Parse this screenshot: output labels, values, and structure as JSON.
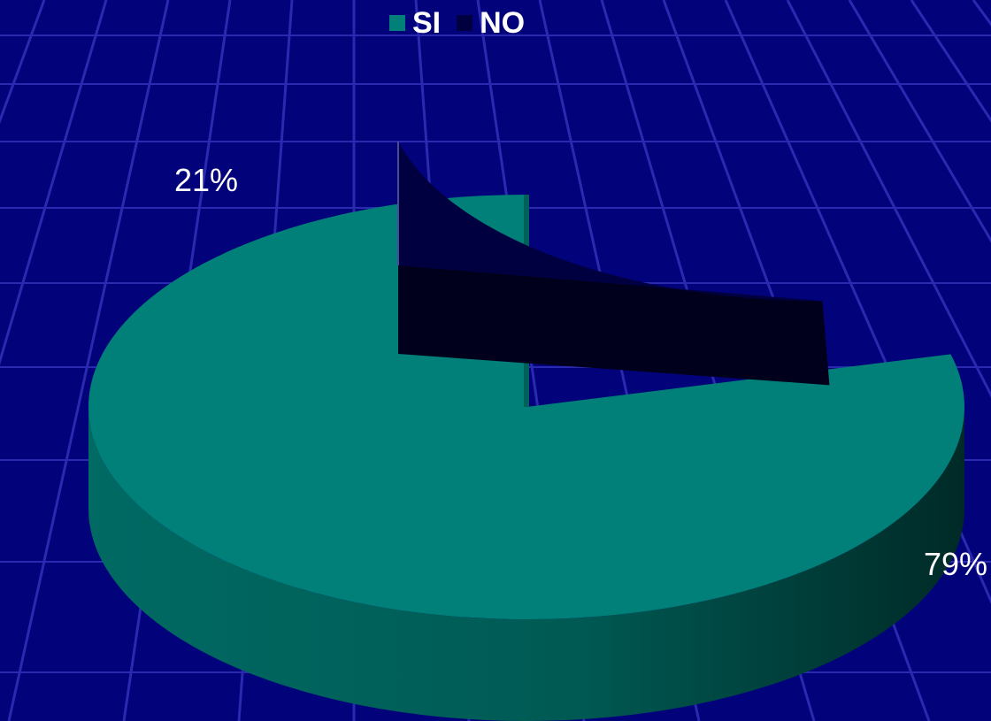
{
  "chart_data": {
    "type": "pie",
    "title": "",
    "categories": [
      "SI",
      "NO"
    ],
    "values": [
      79,
      21
    ],
    "labels": [
      "79%",
      "21%"
    ],
    "colors": [
      "#008078",
      "#000040"
    ],
    "legend": "top",
    "three_d": true,
    "exploded": true
  }
}
